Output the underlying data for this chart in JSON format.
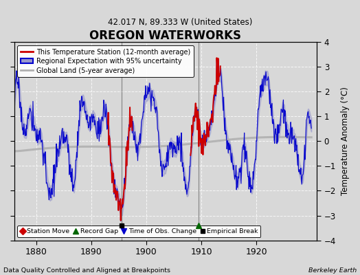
{
  "title": "OREGON WATERWORKS",
  "subtitle": "42.017 N, 89.333 W (United States)",
  "ylabel": "Temperature Anomaly (°C)",
  "xlabel_note": "Data Quality Controlled and Aligned at Breakpoints",
  "attribution": "Berkeley Earth",
  "ylim": [
    -4,
    4
  ],
  "xlim": [
    1876,
    1931
  ],
  "xticks": [
    1880,
    1890,
    1900,
    1910,
    1920
  ],
  "yticks": [
    -4,
    -3,
    -2,
    -1,
    0,
    1,
    2,
    3,
    4
  ],
  "bg_color": "#d8d8d8",
  "plot_bg_color": "#d8d8d8",
  "grid_color": "white",
  "empirical_break_x": 1895.5,
  "record_gap_x": 1909.5,
  "blue_line_color": "#0000cc",
  "blue_fill_color": "#9999cc",
  "red_line_color": "#cc0000",
  "gray_line_color": "#b0b0b0",
  "vline_color": "#666666",
  "vline_x1": 1895.5,
  "vline_x2": 1909.5,
  "red_seg1_start": 1893.0,
  "red_seg1_end": 1897.5,
  "red_seg2_start": 1908.0,
  "red_seg2_end": 1913.5
}
